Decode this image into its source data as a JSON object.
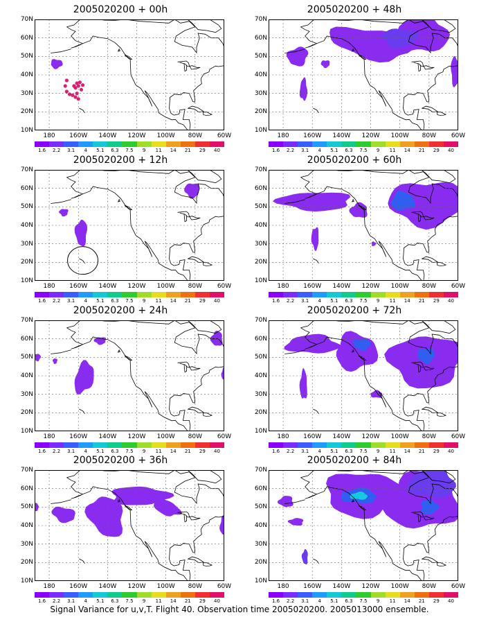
{
  "colors": {
    "scale": [
      "#8a00ff",
      "#7a2bff",
      "#3b5cff",
      "#1f9bff",
      "#14c8d6",
      "#10cc8a",
      "#2fcc2f",
      "#a0dc2a",
      "#e8dc1e",
      "#f0a020",
      "#f07010",
      "#f03030",
      "#e0106a"
    ],
    "fill_main": "#8a2cf0",
    "fill_deep": "#6a3cf0",
    "fill_blue": "#2f5ef0",
    "fill_cyan": "#18c8dc",
    "fill_red": "#dd1f6e",
    "coast": "#000000",
    "grid": "#666666"
  },
  "colorbar_labels": [
    "1.6",
    "2.2",
    "3.1",
    "4",
    "5.1",
    "6.3",
    "7.5",
    "9",
    "11",
    "14",
    "21",
    "29",
    "40"
  ],
  "lat_labels": [
    "70N",
    "60N",
    "50N",
    "40N",
    "30N",
    "20N",
    "10N"
  ],
  "lon_labels": [
    "180",
    "160W",
    "140W",
    "120W",
    "100W",
    "80W",
    "60W"
  ],
  "panels": [
    {
      "title": "2005020200 + 00h"
    },
    {
      "title": "2005020200 + 48h"
    },
    {
      "title": "2005020200 + 12h"
    },
    {
      "title": "2005020200 + 60h"
    },
    {
      "title": "2005020200 + 24h"
    },
    {
      "title": "2005020200 + 72h"
    },
    {
      "title": "2005020200 + 36h"
    },
    {
      "title": "2005020200 + 84h"
    }
  ],
  "caption": "Signal Variance for u,v,T. Flight 40. Observation time 2005020200. 2005013000 ensemble."
}
